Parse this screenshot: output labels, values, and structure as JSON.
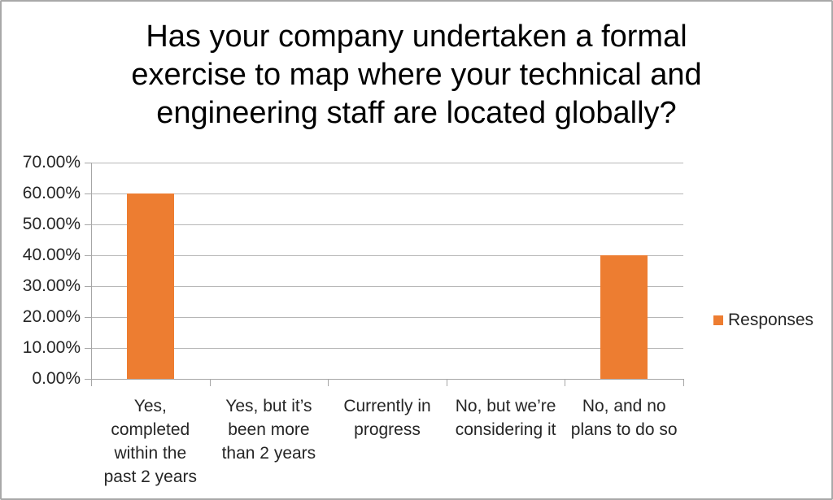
{
  "window": {
    "background": "#ffffff",
    "border_color": "#a8a8a8"
  },
  "chart_data": {
    "type": "bar",
    "title": "Has your company undertaken a formal\nexercise to map where your technical and\nengineering staff are located globally?",
    "categories": [
      "Yes,\ncompleted\nwithin the\npast 2 years",
      "Yes, but it’s\nbeen more\nthan 2 years",
      "Currently in\nprogress",
      "No, but we’re\nconsidering it",
      "No, and no\nplans to do so"
    ],
    "series": [
      {
        "name": "Responses",
        "values": [
          60,
          0,
          0,
          0,
          40
        ]
      }
    ],
    "value_unit": "percent",
    "ylim": [
      0,
      70
    ],
    "ytick_step": 10,
    "ytick_labels": [
      "0.00%",
      "10.00%",
      "20.00%",
      "30.00%",
      "40.00%",
      "50.00%",
      "60.00%",
      "70.00%"
    ],
    "grid": true,
    "legend_position": "right",
    "xlabel": "",
    "ylabel": ""
  },
  "colors": {
    "bar": "#ED7D31",
    "gridline": "#b6b6b6",
    "axis": "#a6a6a6",
    "label_text": "#262626",
    "title_text": "#000000"
  },
  "legend": {
    "label": "Responses",
    "swatch_color": "#ED7D31"
  }
}
